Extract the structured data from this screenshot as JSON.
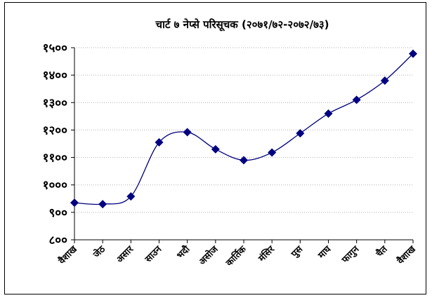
{
  "chart_data": {
    "type": "line",
    "title": "चार्ट ७ नेप्से परिसूचक (२०७१/७२-२०७२/७३)",
    "categories": [
      "वैशाख",
      "जेठ",
      "असार",
      "साउन",
      "भदौ",
      "असोज",
      "कार्तिक",
      "मंसिर",
      "पुस",
      "माघ",
      "फागुन",
      "चैत",
      "वैशाख"
    ],
    "values": [
      935,
      930,
      958,
      1155,
      1192,
      1130,
      1090,
      1118,
      1188,
      1260,
      1310,
      1380,
      1478
    ],
    "ylim": [
      800,
      1500
    ],
    "yticks": [
      800,
      900,
      1000,
      1100,
      1200,
      1300,
      1400,
      1500
    ],
    "ytick_labels": [
      "८००",
      "९००",
      "१०००",
      "११००",
      "१२००",
      "१३००",
      "१४००",
      "१५००"
    ],
    "xlabel": "",
    "ylabel": "",
    "grid": true,
    "legend": "none",
    "line_color": "#00007a",
    "marker_color": "#000080",
    "grid_color": "#b0b0b0"
  }
}
